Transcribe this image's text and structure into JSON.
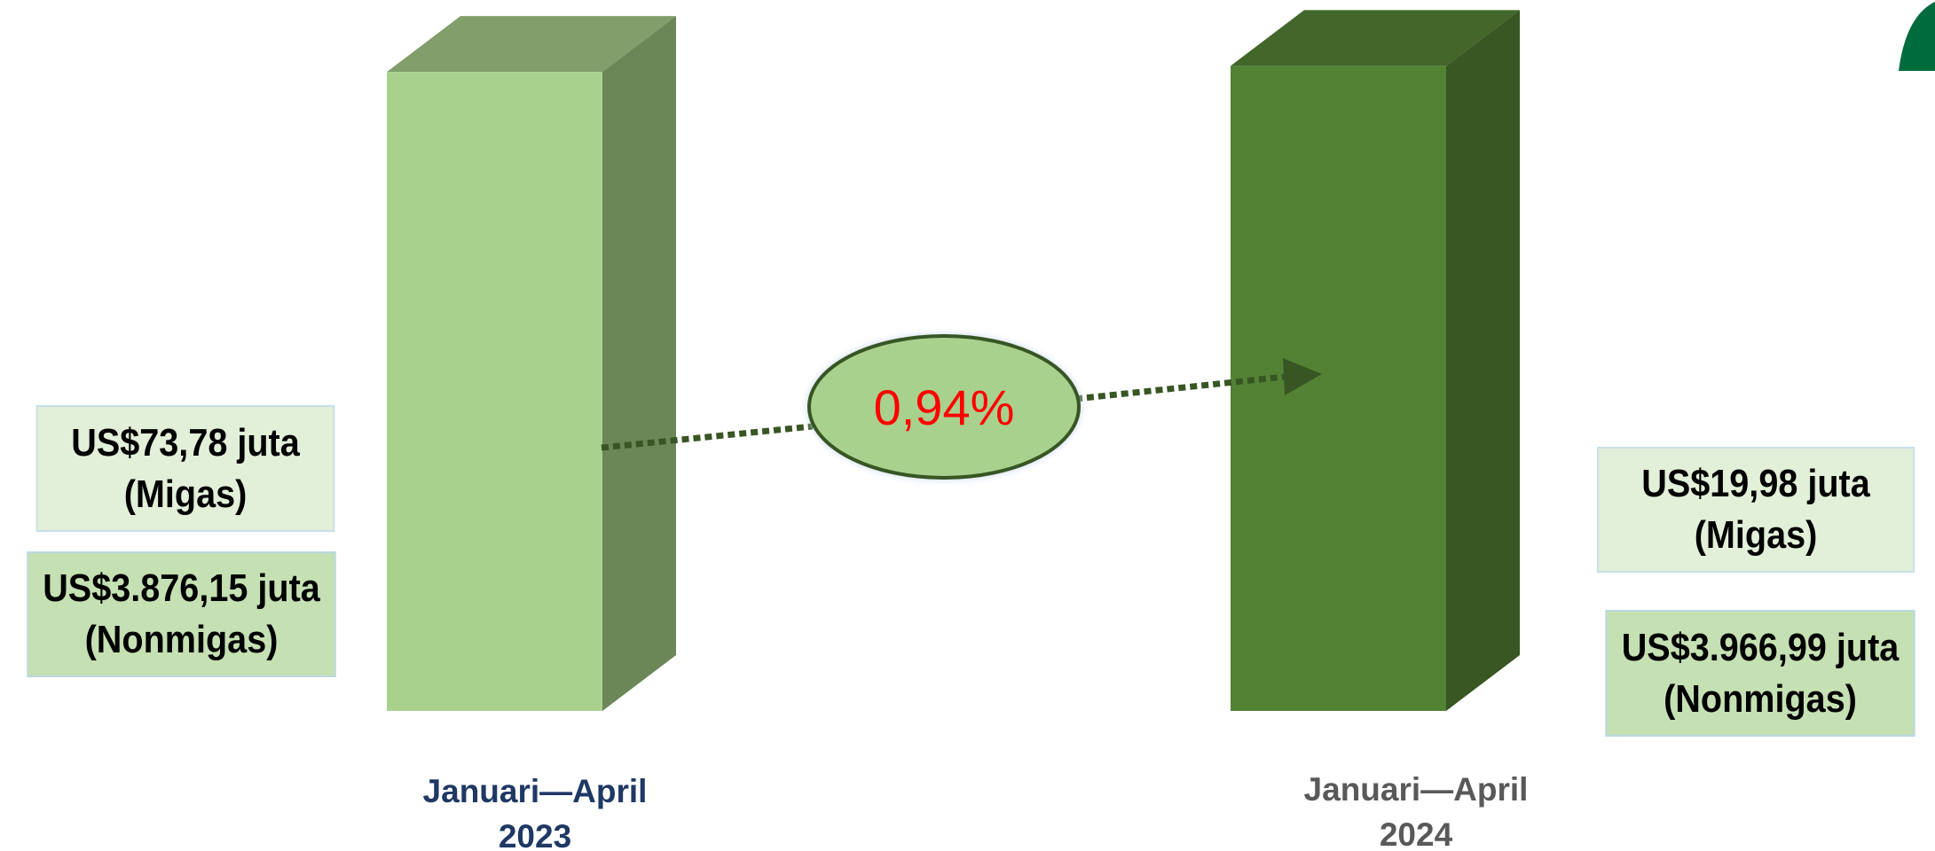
{
  "chart_data": {
    "type": "bar",
    "categories": [
      {
        "line1": "Januari—April",
        "line2": "2023"
      },
      {
        "line1": "Januari—April",
        "line2": "2024"
      }
    ],
    "values": [
      3949.93,
      3986.97
    ],
    "bar_colors": {
      "2023": {
        "front": "#a9d18e",
        "side": "#6b8757",
        "top": "#819e6b"
      },
      "2024": {
        "front": "#548235",
        "side": "#385723",
        "top": "#43662b"
      }
    },
    "label_colors": {
      "2023": "#1f3864",
      "2024": "#595959"
    },
    "change": {
      "label": "0,94%",
      "color": "#ff0000",
      "ellipse_fill": "#a9d18e",
      "ellipse_stroke": "#375623",
      "arrow_color": "#375623"
    },
    "annotations": {
      "2023": {
        "migas": {
          "line1": "US$73,78 juta",
          "line2": "(Migas)"
        },
        "nonmigas": {
          "line1": "US$3.876,15 juta",
          "line2": "(Nonmigas)"
        }
      },
      "2024": {
        "migas": {
          "line1": "US$19,98 juta",
          "line2": "(Migas)"
        },
        "nonmigas": {
          "line1": "US$3.966,99 juta",
          "line2": "(Nonmigas)"
        }
      }
    },
    "corner_decoration_color": "#006b3c"
  }
}
